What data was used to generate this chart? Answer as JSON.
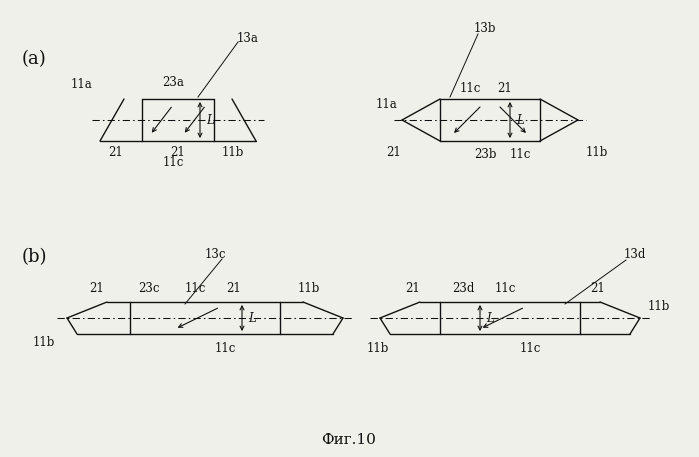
{
  "bg_color": "#f0f0eb",
  "line_color": "#111111",
  "fig_label_a": "(a)",
  "fig_label_b": "(b)",
  "fig_caption": "Фиг.10",
  "font_size": 8.5,
  "lw": 1.0
}
